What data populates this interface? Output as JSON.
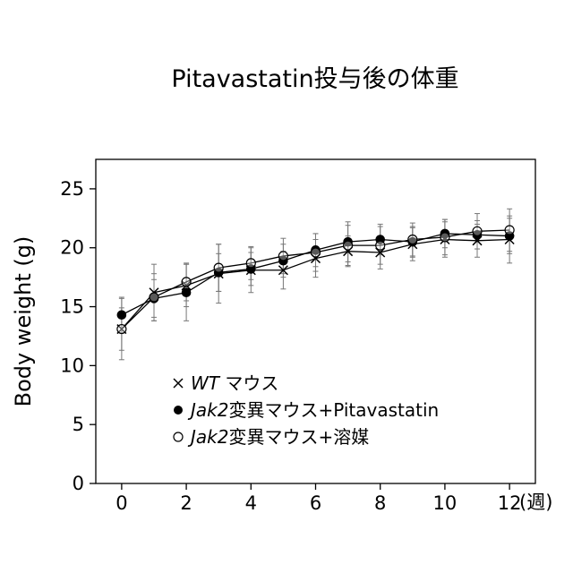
{
  "chart_data": {
    "type": "line",
    "title": "Pitavastatin投与後の体重",
    "ylabel": "Body weight (g)",
    "xlabel": "",
    "x_unit": "(週)",
    "xlim": [
      -0.8,
      12.8
    ],
    "ylim": [
      0,
      27.5
    ],
    "x_ticks": [
      "0",
      "2",
      "4",
      "6",
      "8",
      "10",
      "12"
    ],
    "y_ticks": [
      "0",
      "5",
      "10",
      "15",
      "20",
      "25"
    ],
    "grid": false,
    "legend_placement": "lower-center",
    "x": [
      0,
      1,
      2,
      3,
      4,
      5,
      6,
      7,
      8,
      9,
      10,
      11,
      12
    ],
    "series": [
      {
        "name": "WT マウス",
        "name_italic": "WT",
        "name_rest": " マウス",
        "marker": "x",
        "color": "#000000",
        "values": [
          13.1,
          16.2,
          16.8,
          17.8,
          18.1,
          18.1,
          19.1,
          19.7,
          19.6,
          20.3,
          20.7,
          20.6,
          20.7
        ],
        "errors": [
          2.6,
          2.4,
          1.8,
          2.5,
          1.9,
          1.6,
          1.6,
          1.3,
          1.4,
          1.4,
          1.5,
          1.4,
          2.0
        ]
      },
      {
        "name": "Jak2変異マウス+Pitavastatin",
        "name_italic": "Jak2",
        "name_rest": "変異マウス+Pitavastatin",
        "marker": "filled-circle",
        "color": "#000000",
        "values": [
          14.3,
          15.7,
          16.2,
          17.9,
          18.2,
          18.9,
          19.8,
          20.5,
          20.7,
          20.5,
          21.2,
          21.1,
          21.0
        ],
        "errors": [
          1.5,
          1.6,
          2.4,
          1.6,
          1.4,
          1.4,
          1.4,
          1.7,
          1.3,
          1.3,
          1.2,
          1.2,
          1.5
        ]
      },
      {
        "name": "Jak2変異マウス+溶媒",
        "name_italic": "Jak2",
        "name_rest": "変異マウス+溶媒",
        "marker": "open-circle",
        "color": "#000000",
        "values": [
          13.1,
          15.8,
          17.1,
          18.3,
          18.7,
          19.3,
          19.6,
          20.2,
          20.2,
          20.7,
          20.9,
          21.4,
          21.5
        ],
        "errors": [
          1.8,
          2.0,
          1.6,
          2.0,
          1.4,
          1.5,
          1.6,
          1.7,
          1.6,
          1.4,
          1.5,
          1.5,
          1.8
        ]
      }
    ]
  }
}
